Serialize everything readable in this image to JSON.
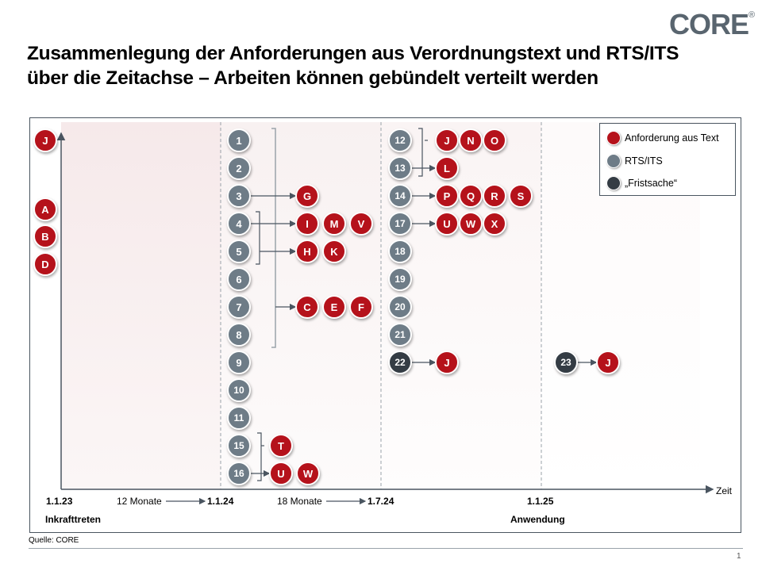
{
  "logo": {
    "text": "CORE",
    "registered": "®"
  },
  "title": {
    "line1": "Zusammenlegung der Anforderungen aus Verordnungstext und RTS/ITS",
    "line2": "über die Zeitachse – Arbeiten können gebündelt verteilt werden"
  },
  "legend": {
    "items": [
      {
        "label": "Anforderung  aus Text",
        "color": "#b5121b"
      },
      {
        "label": "RTS/ITS",
        "color": "#6e7c87"
      },
      {
        "label": "„Fristsache“",
        "color": "#343c44"
      }
    ]
  },
  "colors": {
    "text_requirement": "#b5121b",
    "rts_its": "#6e7c87",
    "deadline": "#343c44",
    "axis": "#4a5560"
  },
  "axis": {
    "x_label": "Zeit",
    "ticks": [
      {
        "date": "1.1.23",
        "sub": "Inkrafttreten"
      },
      {
        "interval": "12 Monate",
        "date": "1.1.24"
      },
      {
        "interval": "18 Monate",
        "date": "1.7.24"
      },
      {
        "date": "1.1.25",
        "sub": "Anwendung"
      }
    ]
  },
  "nodes": {
    "inkrafttreten": [
      "J",
      "A",
      "B",
      "D"
    ],
    "period_1_1_24": {
      "rts": [
        "1",
        "2",
        "3",
        "4",
        "5",
        "6",
        "7",
        "8",
        "9",
        "10",
        "11",
        "15",
        "16"
      ],
      "requirements": [
        "G",
        "I",
        "M",
        "V",
        "H",
        "K",
        "C",
        "E",
        "F",
        "T",
        "U",
        "W"
      ]
    },
    "period_1_7_24": {
      "rts": [
        "12",
        "13",
        "14",
        "17",
        "18",
        "19",
        "20",
        "21"
      ],
      "deadline": [
        "22"
      ],
      "requirements": [
        "J",
        "N",
        "O",
        "L",
        "P",
        "Q",
        "R",
        "S",
        "U",
        "W",
        "X",
        "J"
      ]
    },
    "period_1_1_25": {
      "deadline": [
        "23"
      ],
      "requirements": [
        "J"
      ]
    }
  },
  "footer": {
    "source": "Quelle: CORE",
    "page": "1"
  }
}
